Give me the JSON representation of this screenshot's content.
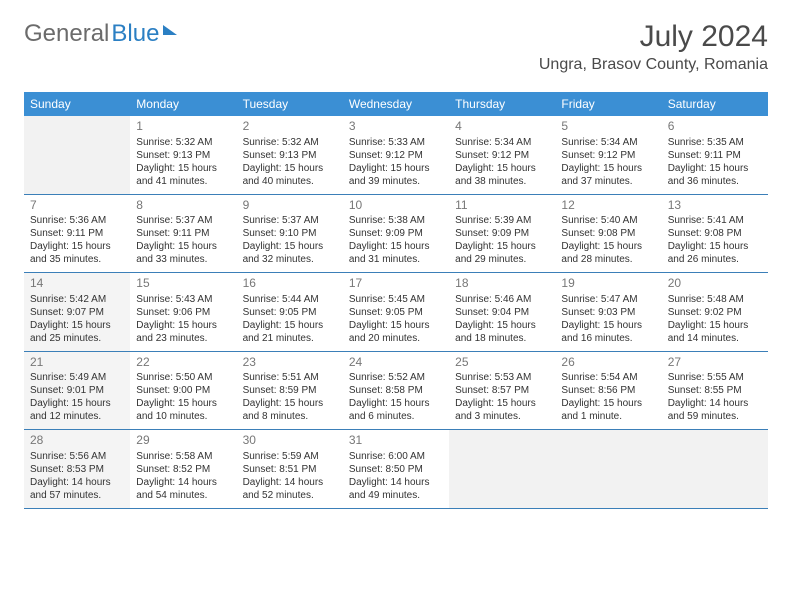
{
  "logo": {
    "part1": "General",
    "part2": "Blue"
  },
  "title": "July 2024",
  "location": "Ungra, Brasov County, Romania",
  "colors": {
    "header_bg": "#3b8fd4",
    "header_text": "#ffffff",
    "border": "#3b7fb8",
    "body_text": "#333333",
    "daynum": "#777777",
    "shade_bg": "#f4f4f4",
    "logo_gray": "#6b6b6b",
    "logo_blue": "#2b7fc3"
  },
  "dayHeaders": [
    "Sunday",
    "Monday",
    "Tuesday",
    "Wednesday",
    "Thursday",
    "Friday",
    "Saturday"
  ],
  "weeks": [
    [
      {
        "empty": true
      },
      {
        "day": "1",
        "sunrise": "Sunrise: 5:32 AM",
        "sunset": "Sunset: 9:13 PM",
        "daylight": "Daylight: 15 hours and 41 minutes."
      },
      {
        "day": "2",
        "sunrise": "Sunrise: 5:32 AM",
        "sunset": "Sunset: 9:13 PM",
        "daylight": "Daylight: 15 hours and 40 minutes."
      },
      {
        "day": "3",
        "sunrise": "Sunrise: 5:33 AM",
        "sunset": "Sunset: 9:12 PM",
        "daylight": "Daylight: 15 hours and 39 minutes."
      },
      {
        "day": "4",
        "sunrise": "Sunrise: 5:34 AM",
        "sunset": "Sunset: 9:12 PM",
        "daylight": "Daylight: 15 hours and 38 minutes."
      },
      {
        "day": "5",
        "sunrise": "Sunrise: 5:34 AM",
        "sunset": "Sunset: 9:12 PM",
        "daylight": "Daylight: 15 hours and 37 minutes."
      },
      {
        "day": "6",
        "sunrise": "Sunrise: 5:35 AM",
        "sunset": "Sunset: 9:11 PM",
        "daylight": "Daylight: 15 hours and 36 minutes."
      }
    ],
    [
      {
        "day": "7",
        "sunrise": "Sunrise: 5:36 AM",
        "sunset": "Sunset: 9:11 PM",
        "daylight": "Daylight: 15 hours and 35 minutes."
      },
      {
        "day": "8",
        "sunrise": "Sunrise: 5:37 AM",
        "sunset": "Sunset: 9:11 PM",
        "daylight": "Daylight: 15 hours and 33 minutes."
      },
      {
        "day": "9",
        "sunrise": "Sunrise: 5:37 AM",
        "sunset": "Sunset: 9:10 PM",
        "daylight": "Daylight: 15 hours and 32 minutes."
      },
      {
        "day": "10",
        "sunrise": "Sunrise: 5:38 AM",
        "sunset": "Sunset: 9:09 PM",
        "daylight": "Daylight: 15 hours and 31 minutes."
      },
      {
        "day": "11",
        "sunrise": "Sunrise: 5:39 AM",
        "sunset": "Sunset: 9:09 PM",
        "daylight": "Daylight: 15 hours and 29 minutes."
      },
      {
        "day": "12",
        "sunrise": "Sunrise: 5:40 AM",
        "sunset": "Sunset: 9:08 PM",
        "daylight": "Daylight: 15 hours and 28 minutes."
      },
      {
        "day": "13",
        "sunrise": "Sunrise: 5:41 AM",
        "sunset": "Sunset: 9:08 PM",
        "daylight": "Daylight: 15 hours and 26 minutes."
      }
    ],
    [
      {
        "day": "14",
        "shade": true,
        "sunrise": "Sunrise: 5:42 AM",
        "sunset": "Sunset: 9:07 PM",
        "daylight": "Daylight: 15 hours and 25 minutes."
      },
      {
        "day": "15",
        "sunrise": "Sunrise: 5:43 AM",
        "sunset": "Sunset: 9:06 PM",
        "daylight": "Daylight: 15 hours and 23 minutes."
      },
      {
        "day": "16",
        "sunrise": "Sunrise: 5:44 AM",
        "sunset": "Sunset: 9:05 PM",
        "daylight": "Daylight: 15 hours and 21 minutes."
      },
      {
        "day": "17",
        "sunrise": "Sunrise: 5:45 AM",
        "sunset": "Sunset: 9:05 PM",
        "daylight": "Daylight: 15 hours and 20 minutes."
      },
      {
        "day": "18",
        "sunrise": "Sunrise: 5:46 AM",
        "sunset": "Sunset: 9:04 PM",
        "daylight": "Daylight: 15 hours and 18 minutes."
      },
      {
        "day": "19",
        "sunrise": "Sunrise: 5:47 AM",
        "sunset": "Sunset: 9:03 PM",
        "daylight": "Daylight: 15 hours and 16 minutes."
      },
      {
        "day": "20",
        "sunrise": "Sunrise: 5:48 AM",
        "sunset": "Sunset: 9:02 PM",
        "daylight": "Daylight: 15 hours and 14 minutes."
      }
    ],
    [
      {
        "day": "21",
        "shade": true,
        "sunrise": "Sunrise: 5:49 AM",
        "sunset": "Sunset: 9:01 PM",
        "daylight": "Daylight: 15 hours and 12 minutes."
      },
      {
        "day": "22",
        "sunrise": "Sunrise: 5:50 AM",
        "sunset": "Sunset: 9:00 PM",
        "daylight": "Daylight: 15 hours and 10 minutes."
      },
      {
        "day": "23",
        "sunrise": "Sunrise: 5:51 AM",
        "sunset": "Sunset: 8:59 PM",
        "daylight": "Daylight: 15 hours and 8 minutes."
      },
      {
        "day": "24",
        "sunrise": "Sunrise: 5:52 AM",
        "sunset": "Sunset: 8:58 PM",
        "daylight": "Daylight: 15 hours and 6 minutes."
      },
      {
        "day": "25",
        "sunrise": "Sunrise: 5:53 AM",
        "sunset": "Sunset: 8:57 PM",
        "daylight": "Daylight: 15 hours and 3 minutes."
      },
      {
        "day": "26",
        "sunrise": "Sunrise: 5:54 AM",
        "sunset": "Sunset: 8:56 PM",
        "daylight": "Daylight: 15 hours and 1 minute."
      },
      {
        "day": "27",
        "sunrise": "Sunrise: 5:55 AM",
        "sunset": "Sunset: 8:55 PM",
        "daylight": "Daylight: 14 hours and 59 minutes."
      }
    ],
    [
      {
        "day": "28",
        "shade": true,
        "sunrise": "Sunrise: 5:56 AM",
        "sunset": "Sunset: 8:53 PM",
        "daylight": "Daylight: 14 hours and 57 minutes."
      },
      {
        "day": "29",
        "sunrise": "Sunrise: 5:58 AM",
        "sunset": "Sunset: 8:52 PM",
        "daylight": "Daylight: 14 hours and 54 minutes."
      },
      {
        "day": "30",
        "sunrise": "Sunrise: 5:59 AM",
        "sunset": "Sunset: 8:51 PM",
        "daylight": "Daylight: 14 hours and 52 minutes."
      },
      {
        "day": "31",
        "sunrise": "Sunrise: 6:00 AM",
        "sunset": "Sunset: 8:50 PM",
        "daylight": "Daylight: 14 hours and 49 minutes."
      },
      {
        "empty": true
      },
      {
        "empty": true
      },
      {
        "empty": true
      }
    ]
  ]
}
